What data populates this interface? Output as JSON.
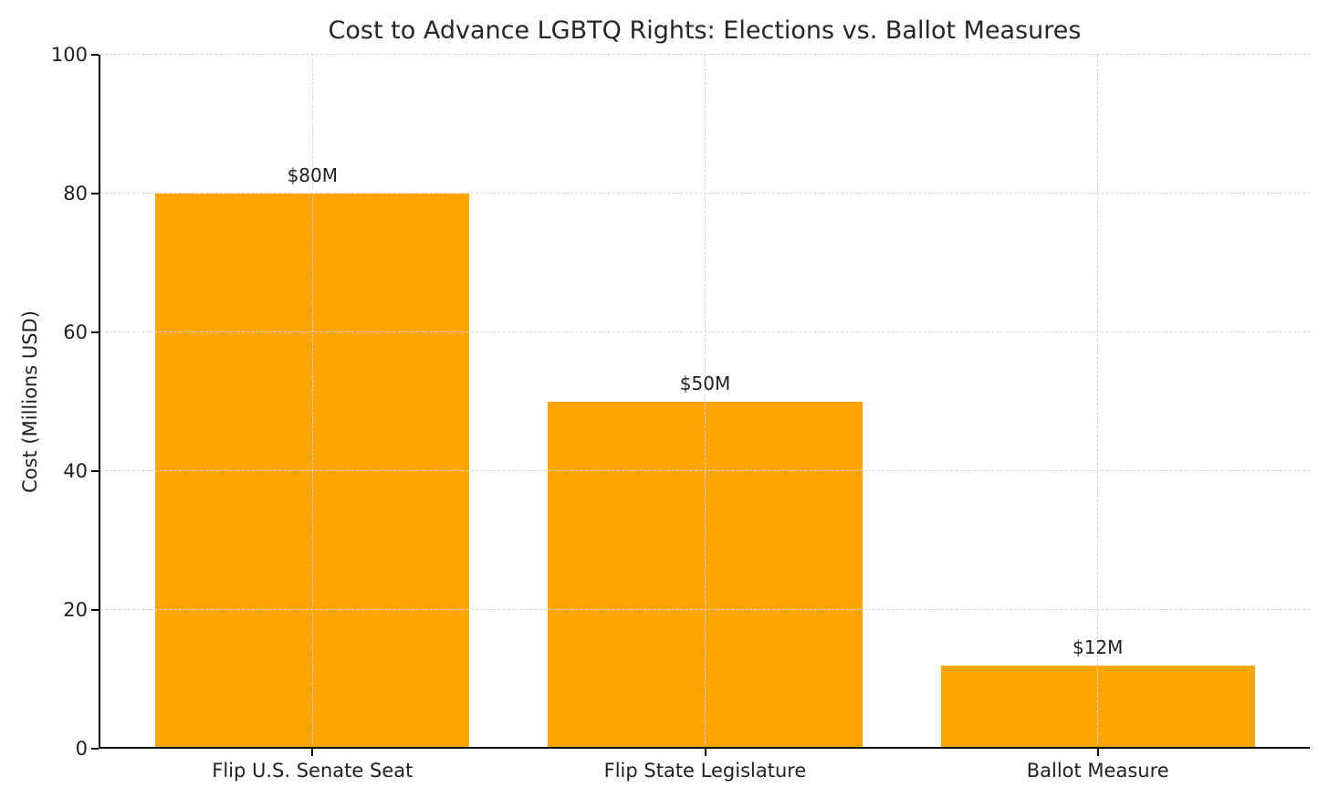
{
  "figure": {
    "background_color": "#ffffff",
    "text_color": "#1f1f1f",
    "grid_color": "#d4d4d4",
    "spine_color": "#000000"
  },
  "chart_data": {
    "type": "bar",
    "title": "Cost to Advance LGBTQ Rights: Elections vs. Ballot Measures",
    "xlabel": "",
    "ylabel": "Cost (Millions USD)",
    "categories": [
      "Flip U.S. Senate Seat",
      "Flip State Legislature",
      "Ballot Measure"
    ],
    "values": [
      80,
      50,
      12
    ],
    "bar_labels": [
      "$80M",
      "$50M",
      "$12M"
    ],
    "bar_color": "#FFA500",
    "ylim": [
      0,
      100
    ],
    "yticks": [
      0,
      20,
      40,
      60,
      80,
      100
    ],
    "grid": "dashed, both axes, drawn above bars",
    "legend_position": "none"
  }
}
